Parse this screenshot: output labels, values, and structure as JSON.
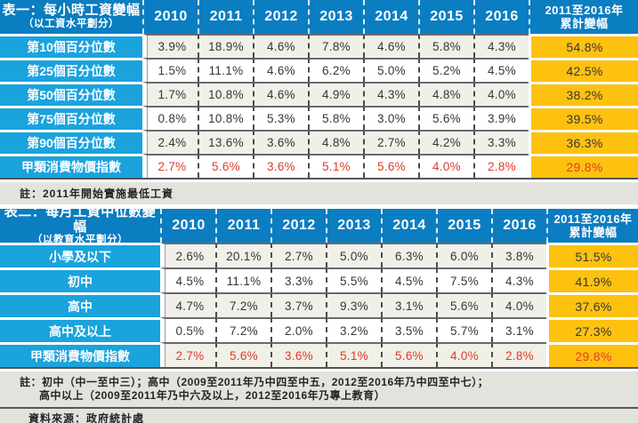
{
  "colors": {
    "header_blue": "#0b7dc1",
    "label_blue": "#1aa3dd",
    "accent_yellow": "#fdc110",
    "row_beige": "#f0efe8",
    "cpi_red": "#e23a28",
    "line_dark": "#55565a"
  },
  "chart_data": [
    {
      "type": "table",
      "title": "表一：每小時工資變幅",
      "subtitle": "（以工資水平劃分）",
      "columns": [
        "2010",
        "2011",
        "2012",
        "2013",
        "2014",
        "2015",
        "2016"
      ],
      "cum_label_line1": "2011至2016年",
      "cum_label_line2": "累計變幅",
      "rows": [
        {
          "label": "第10個百分位數",
          "values": [
            "3.9%",
            "18.9%",
            "4.6%",
            "7.8%",
            "4.6%",
            "5.8%",
            "4.3%"
          ],
          "cumulative": "54.8%",
          "is_cpi": false
        },
        {
          "label": "第25個百分位數",
          "values": [
            "1.5%",
            "11.1%",
            "4.6%",
            "6.2%",
            "5.0%",
            "5.2%",
            "4.5%"
          ],
          "cumulative": "42.5%",
          "is_cpi": false
        },
        {
          "label": "第50個百分位數",
          "values": [
            "1.7%",
            "10.8%",
            "4.6%",
            "4.9%",
            "4.3%",
            "4.8%",
            "4.0%"
          ],
          "cumulative": "38.2%",
          "is_cpi": false
        },
        {
          "label": "第75個百分位數",
          "values": [
            "0.8%",
            "10.8%",
            "5.3%",
            "5.8%",
            "3.0%",
            "5.6%",
            "3.9%"
          ],
          "cumulative": "39.5%",
          "is_cpi": false
        },
        {
          "label": "第90個百分位數",
          "values": [
            "2.4%",
            "13.6%",
            "3.6%",
            "4.8%",
            "2.7%",
            "4.2%",
            "3.3%"
          ],
          "cumulative": "36.3%",
          "is_cpi": false
        },
        {
          "label": "甲類消費物價指數",
          "values": [
            "2.7%",
            "5.6%",
            "3.6%",
            "5.1%",
            "5.6%",
            "4.0%",
            "2.8%"
          ],
          "cumulative": "29.8%",
          "is_cpi": true
        }
      ],
      "note": "註：2011年開始實施最低工資"
    },
    {
      "type": "table",
      "title": "表二：每月工資中位數變幅",
      "subtitle": "（以教育水平劃分）",
      "columns": [
        "2010",
        "2011",
        "2012",
        "2013",
        "2014",
        "2015",
        "2016"
      ],
      "cum_label_line1": "2011至2016年",
      "cum_label_line2": "累計變幅",
      "rows": [
        {
          "label": "小學及以下",
          "values": [
            "2.6%",
            "20.1%",
            "2.7%",
            "5.0%",
            "6.3%",
            "6.0%",
            "3.8%"
          ],
          "cumulative": "51.5%",
          "is_cpi": false
        },
        {
          "label": "初中",
          "values": [
            "4.5%",
            "11.1%",
            "3.3%",
            "5.5%",
            "4.5%",
            "7.5%",
            "4.3%"
          ],
          "cumulative": "41.9%",
          "is_cpi": false
        },
        {
          "label": "高中",
          "values": [
            "4.7%",
            "7.2%",
            "3.7%",
            "9.3%",
            "3.1%",
            "5.6%",
            "4.0%"
          ],
          "cumulative": "37.6%",
          "is_cpi": false
        },
        {
          "label": "高中及以上",
          "values": [
            "0.5%",
            "7.2%",
            "2.0%",
            "3.2%",
            "3.5%",
            "5.7%",
            "3.1%"
          ],
          "cumulative": "27.3%",
          "is_cpi": false
        },
        {
          "label": "甲類消費物價指數",
          "values": [
            "2.7%",
            "5.6%",
            "3.6%",
            "5.1%",
            "5.6%",
            "4.0%",
            "2.8%"
          ],
          "cumulative": "29.8%",
          "is_cpi": true
        }
      ]
    }
  ],
  "footer": {
    "note_line1": "註：初中（中一至中三）；高中（2009至2011年乃中四至中五，2012至2016年乃中四至中七）；",
    "note_line2": "高中以上（2009至2011年乃中六及以上，2012至2016年乃專上教育）",
    "source": "資料來源：政府統計處"
  }
}
